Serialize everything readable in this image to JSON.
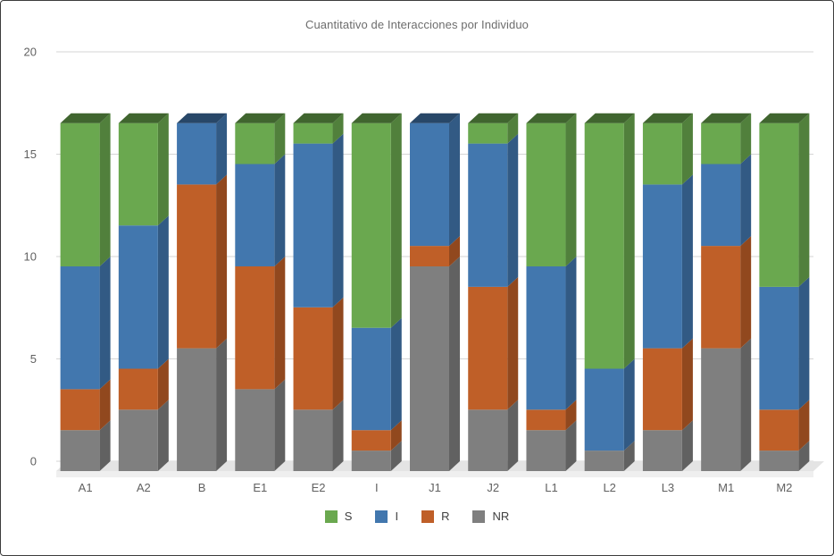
{
  "chart_data": {
    "type": "bar",
    "variant": "stacked-column-3d",
    "title": "Cuantitativo de Interacciones por Individuo",
    "categories": [
      "A1",
      "A2",
      "B",
      "E1",
      "E2",
      "I",
      "J1",
      "J2",
      "L1",
      "L2",
      "L3",
      "M1",
      "M2"
    ],
    "series": [
      {
        "name": "S",
        "color": "#6aa84f",
        "values": [
          7,
          5,
          0,
          2,
          1,
          10,
          0,
          1,
          7,
          12,
          3,
          2,
          8
        ]
      },
      {
        "name": "I",
        "color": "#4277ae",
        "values": [
          6,
          7,
          3,
          5,
          8,
          5,
          6,
          7,
          7,
          4,
          8,
          4,
          6
        ]
      },
      {
        "name": "R",
        "color": "#bf5f28",
        "values": [
          2,
          2,
          8,
          6,
          5,
          1,
          1,
          6,
          1,
          0,
          4,
          5,
          2
        ]
      },
      {
        "name": "NR",
        "color": "#7f7f7f",
        "values": [
          2,
          3,
          6,
          4,
          3,
          1,
          10,
          3,
          2,
          1,
          2,
          6,
          1
        ]
      }
    ],
    "stack_order_bottom_to_top": [
      "NR",
      "R",
      "I",
      "S"
    ],
    "ylim": [
      0,
      20
    ],
    "yticks": [
      0,
      5,
      10,
      15,
      20
    ],
    "grid": true,
    "legend_position": "bottom",
    "axis_label_color": "#616161",
    "category_label_color": "#616161",
    "gridline_color": "#d6d6d6",
    "floor_color": "#e4e4e4",
    "floor_edge_color": "#efefef"
  }
}
